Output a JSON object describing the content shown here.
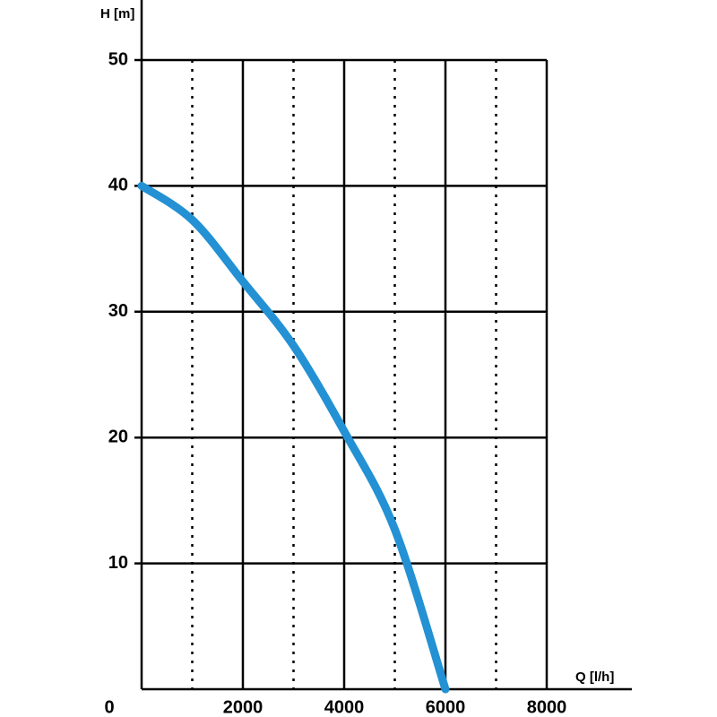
{
  "chart_data": {
    "type": "line",
    "x_label": "Q [l/h]",
    "y_label": "H [m]",
    "x": [
      0,
      1000,
      2000,
      3000,
      4000,
      5000,
      6000
    ],
    "series": [
      {
        "color": "#2391d3",
        "values": [
          40,
          37.3,
          32.4,
          27.3,
          20.5,
          12.7,
          0
        ]
      }
    ],
    "xlim": [
      0,
      8000
    ],
    "ylim": [
      0,
      50
    ],
    "xticks": [
      0,
      2000,
      4000,
      6000,
      8000
    ],
    "minor_xticks": [
      1000,
      3000,
      5000,
      7000
    ],
    "yticks": [
      10,
      20,
      30,
      40,
      50
    ],
    "grid": true
  }
}
